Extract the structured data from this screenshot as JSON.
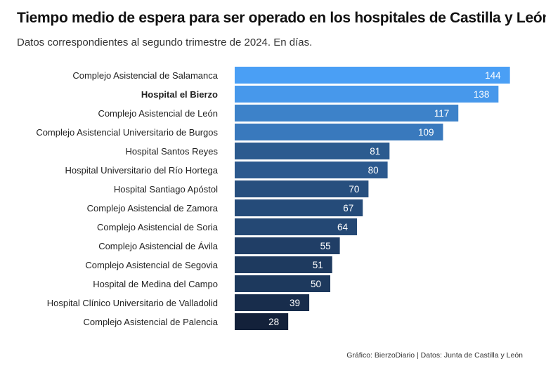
{
  "chart_data": {
    "type": "bar",
    "orientation": "horizontal",
    "title": "Tiempo medio de espera para ser operado en los hospitales de Castilla y León",
    "subtitle": "Datos correspondientes al segundo trimestre de 2024. En días.",
    "caption": "Gráfico: BierzoDiario | Datos: Junta de Castilla y León",
    "highlighted_category": "Hospital el Bierzo",
    "xlim": [
      0,
      150
    ],
    "grid": false,
    "color_scale": {
      "low": "#13213a",
      "high": "#4a9ff5"
    },
    "categories": [
      "Complejo Asistencial de Salamanca",
      "Hospital el Bierzo",
      "Complejo Asistencial de León",
      "Complejo Asistencial Universitario de Burgos",
      "Hospital Santos Reyes",
      "Hospital Universitario del Río Hortega",
      "Hospital Santiago Apóstol",
      "Complejo Asistencial de Zamora",
      "Complejo Asistencial de Soria",
      "Complejo Asistencial de Ávila",
      "Complejo Asistencial de Segovia",
      "Hospital de Medina del Campo",
      "Hospital Clínico Universitario de Valladolid",
      "Complejo Asistencial de Palencia"
    ],
    "values": [
      144,
      138,
      117,
      109,
      81,
      80,
      70,
      67,
      64,
      55,
      51,
      50,
      39,
      28
    ]
  }
}
